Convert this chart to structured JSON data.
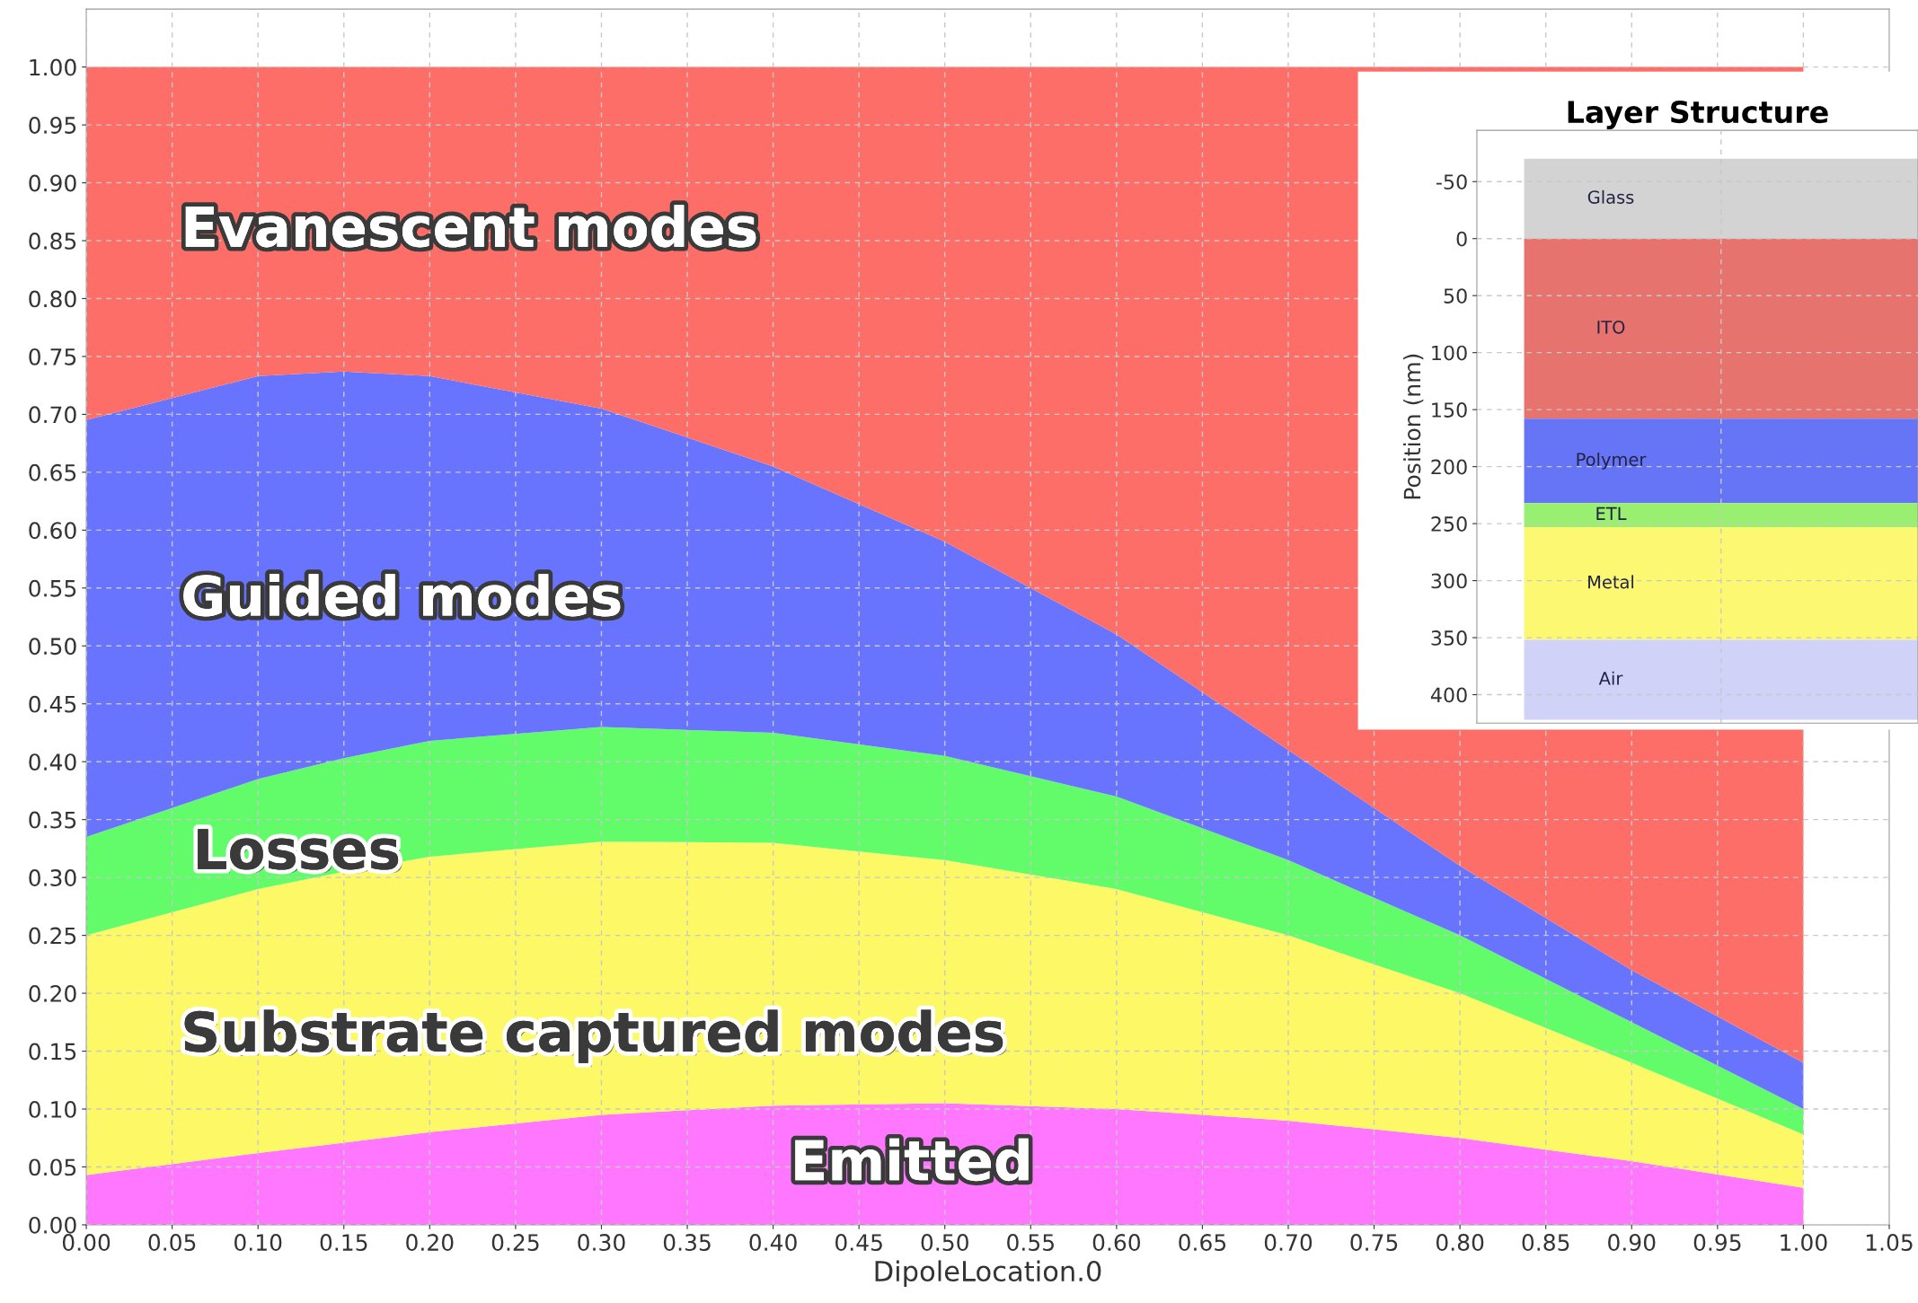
{
  "chart_data": [
    {
      "type": "area",
      "stacked": true,
      "xlabel": "DipoleLocation.0",
      "x": [
        0,
        0.1,
        0.15,
        0.2,
        0.3,
        0.4,
        0.5,
        0.6,
        0.7,
        0.8,
        0.9,
        1.0
      ],
      "series": [
        {
          "name": "Emitted",
          "color": "#ff77ff",
          "values": [
            0.043,
            0.062,
            0.071,
            0.08,
            0.095,
            0.103,
            0.105,
            0.1,
            0.09,
            0.075,
            0.055,
            0.032
          ]
        },
        {
          "name": "Substrate captured modes",
          "color": "#fdf866",
          "values": [
            0.207,
            0.228,
            0.234,
            0.238,
            0.236,
            0.227,
            0.21,
            0.19,
            0.16,
            0.125,
            0.085,
            0.046
          ]
        },
        {
          "name": "Losses",
          "color": "#62fb6a",
          "values": [
            0.085,
            0.095,
            0.098,
            0.1,
            0.099,
            0.095,
            0.09,
            0.08,
            0.065,
            0.05,
            0.035,
            0.022
          ]
        },
        {
          "name": "Guided modes",
          "color": "#6873fe",
          "values": [
            0.36,
            0.348,
            0.334,
            0.315,
            0.275,
            0.23,
            0.185,
            0.14,
            0.095,
            0.06,
            0.045,
            0.04
          ]
        },
        {
          "name": "Evanescent modes",
          "color": "#fe6e68",
          "values": [
            0.305,
            0.267,
            0.263,
            0.267,
            0.295,
            0.345,
            0.41,
            0.49,
            0.59,
            0.69,
            0.78,
            0.86
          ]
        }
      ],
      "xlim": [
        0,
        1.05
      ],
      "ylim": [
        0,
        1.05
      ],
      "xticks": [
        {
          "value": 0,
          "label": "0.00"
        },
        {
          "value": 0.05,
          "label": "0.05"
        },
        {
          "value": 0.1,
          "label": "0.10"
        },
        {
          "value": 0.15,
          "label": "0.15"
        },
        {
          "value": 0.2,
          "label": "0.20"
        },
        {
          "value": 0.25,
          "label": "0.25"
        },
        {
          "value": 0.3,
          "label": "0.30"
        },
        {
          "value": 0.35,
          "label": "0.35"
        },
        {
          "value": 0.4,
          "label": "0.40"
        },
        {
          "value": 0.45,
          "label": "0.45"
        },
        {
          "value": 0.5,
          "label": "0.50"
        },
        {
          "value": 0.55,
          "label": "0.55"
        },
        {
          "value": 0.6,
          "label": "0.60"
        },
        {
          "value": 0.65,
          "label": "0.65"
        },
        {
          "value": 0.7,
          "label": "0.70"
        },
        {
          "value": 0.75,
          "label": "0.75"
        },
        {
          "value": 0.8,
          "label": "0.80"
        },
        {
          "value": 0.85,
          "label": "0.85"
        },
        {
          "value": 0.9,
          "label": "0.90"
        },
        {
          "value": 0.95,
          "label": "0.95"
        },
        {
          "value": 1.0,
          "label": "1.00"
        },
        {
          "value": 1.05,
          "label": "1.05"
        }
      ],
      "yticks": [
        {
          "value": 0,
          "label": "0.00"
        },
        {
          "value": 0.05,
          "label": "0.05"
        },
        {
          "value": 0.1,
          "label": "0.10"
        },
        {
          "value": 0.15,
          "label": "0.15"
        },
        {
          "value": 0.2,
          "label": "0.20"
        },
        {
          "value": 0.25,
          "label": "0.25"
        },
        {
          "value": 0.3,
          "label": "0.30"
        },
        {
          "value": 0.35,
          "label": "0.35"
        },
        {
          "value": 0.4,
          "label": "0.40"
        },
        {
          "value": 0.45,
          "label": "0.45"
        },
        {
          "value": 0.5,
          "label": "0.50"
        },
        {
          "value": 0.55,
          "label": "0.55"
        },
        {
          "value": 0.6,
          "label": "0.60"
        },
        {
          "value": 0.65,
          "label": "0.65"
        },
        {
          "value": 0.7,
          "label": "0.70"
        },
        {
          "value": 0.75,
          "label": "0.75"
        },
        {
          "value": 0.8,
          "label": "0.80"
        },
        {
          "value": 0.85,
          "label": "0.85"
        },
        {
          "value": 0.9,
          "label": "0.90"
        },
        {
          "value": 0.95,
          "label": "0.95"
        },
        {
          "value": 1.0,
          "label": "1.00"
        }
      ],
      "grid": true
    },
    {
      "type": "bar",
      "title": "Layer Structure",
      "ylabel": "Position (nm)",
      "categories": [
        null
      ],
      "series": [
        {
          "name": "Glass",
          "color": "#d3d3d3",
          "base": [
            -70
          ],
          "values": [
            70
          ]
        },
        {
          "name": "ITO",
          "color": "#e6736e",
          "base": [
            0
          ],
          "values": [
            158
          ]
        },
        {
          "name": "Polymer",
          "color": "#6675f5",
          "base": [
            158
          ],
          "values": [
            74
          ]
        },
        {
          "name": "ETL",
          "color": "#99f070",
          "base": [
            232
          ],
          "values": [
            21
          ]
        },
        {
          "name": "Metal",
          "color": "#fdf871",
          "base": [
            253
          ],
          "values": [
            99
          ]
        },
        {
          "name": "Air",
          "color": "#d0d2f7",
          "base": [
            352
          ],
          "values": [
            70
          ]
        }
      ],
      "ylim": [
        425,
        -95
      ],
      "yticks": [
        -50,
        0,
        50,
        100,
        150,
        200,
        250,
        300,
        350,
        400
      ],
      "grid": true
    }
  ]
}
